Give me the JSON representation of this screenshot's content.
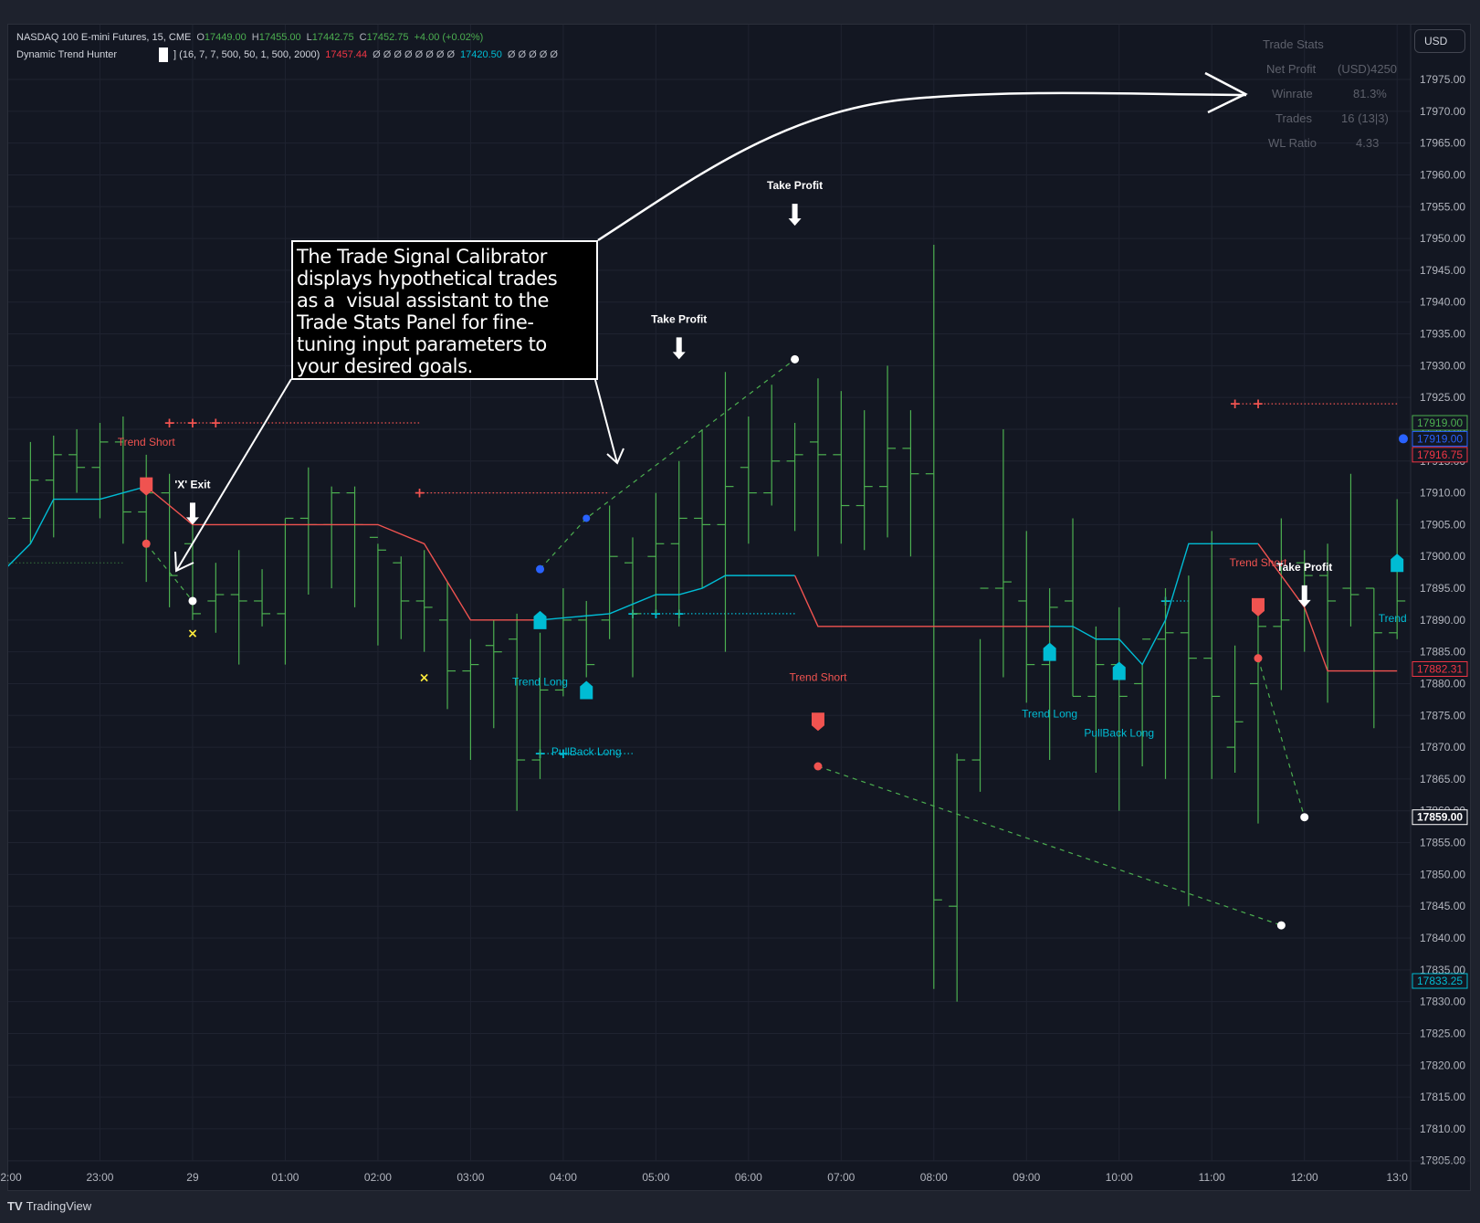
{
  "legend": {
    "symbol": "NASDAQ 100 E-mini Futures, 15, CME",
    "open_label": "O",
    "open": "17449.00",
    "high_label": "H",
    "high": "17455.00",
    "low_label": "L",
    "low": "17442.75",
    "close_label": "C",
    "close": "17452.75",
    "change": "+4.00 (+0.02%)",
    "indicator_name": "Dynamic Trend Hunter",
    "indicator_params": "] (16, 7, 7, 500, 50, 1, 500, 2000)",
    "indicator_value_1": "17457.44",
    "empty_values_1": "Ø Ø Ø Ø Ø Ø Ø Ø",
    "indicator_value_2": "17420.50",
    "empty_values_2": "Ø Ø Ø Ø Ø"
  },
  "currency_button": "USD",
  "trade_stats": {
    "title": "Trade Stats",
    "rows": [
      {
        "label": "Net Profit",
        "value": "(USD)4250"
      },
      {
        "label": "Winrate",
        "value": "81.3%"
      },
      {
        "label": "Trades",
        "value": "16 (13|3)"
      },
      {
        "label": "WL Ratio",
        "value": "4.33"
      }
    ]
  },
  "callout": {
    "lines": [
      "The Trade Signal Calibrator",
      "displays hypothetical trades",
      "as a  visual assistant to the",
      "Trade Stats Panel for fine-",
      "tuning input parameters to",
      "your desired goals."
    ]
  },
  "footer": {
    "logo_mark": "TV",
    "logo_text": "TradingView"
  },
  "colors": {
    "background": "#131722",
    "grid": "#1f2330",
    "bar": "#4caf50",
    "short": "#f05350",
    "long": "#00bcd4",
    "entry_long_dot": "#2962ff",
    "exit_dot": "#ffffff",
    "stop_x": "#ffeb3b",
    "axis_text": "#b2b5be"
  },
  "chart_data": {
    "type": "ohlc",
    "title": "NASDAQ 100 E-mini Futures, 15, CME",
    "ylim": [
      17802,
      17985
    ],
    "y_ticks": [
      17975,
      17970,
      17965,
      17960,
      17955,
      17950,
      17945,
      17940,
      17935,
      17930,
      17925,
      17920,
      17915,
      17910,
      17905,
      17900,
      17895,
      17890,
      17885,
      17880,
      17875,
      17870,
      17865,
      17860,
      17855,
      17850,
      17845,
      17840,
      17835,
      17830,
      17825,
      17820,
      17815,
      17810,
      17805
    ],
    "x_ticks": [
      {
        "label": "2:00",
        "t": 0
      },
      {
        "label": "23:00",
        "t": 4
      },
      {
        "label": "29",
        "t": 8
      },
      {
        "label": "01:00",
        "t": 12
      },
      {
        "label": "02:00",
        "t": 16
      },
      {
        "label": "03:00",
        "t": 20
      },
      {
        "label": "04:00",
        "t": 24
      },
      {
        "label": "05:00",
        "t": 28
      },
      {
        "label": "06:00",
        "t": 32
      },
      {
        "label": "07:00",
        "t": 36
      },
      {
        "label": "08:00",
        "t": 40
      },
      {
        "label": "09:00",
        "t": 44
      },
      {
        "label": "10:00",
        "t": 48
      },
      {
        "label": "11:00",
        "t": 52
      },
      {
        "label": "12:00",
        "t": 56
      },
      {
        "label": "13:0",
        "t": 60
      }
    ],
    "bars": [
      [
        17908,
        17912,
        17900,
        17906
      ],
      [
        17906,
        17918,
        17902,
        17912
      ],
      [
        17912,
        17919,
        17903,
        17916
      ],
      [
        17916,
        17920,
        17910,
        17914
      ],
      [
        17914,
        17921,
        17906,
        17918
      ],
      [
        17918,
        17922,
        17902,
        17907
      ],
      [
        17907,
        17916,
        17896,
        17910
      ],
      [
        17910,
        17913,
        17892,
        17897
      ],
      [
        17902,
        17906,
        17890,
        17891
      ],
      [
        17893,
        17899,
        17888,
        17894
      ],
      [
        17894,
        17901,
        17883,
        17893
      ],
      [
        17893,
        17898,
        17889,
        17891
      ],
      [
        17891,
        17906,
        17883,
        17906
      ],
      [
        17906,
        17914,
        17894,
        17905
      ],
      [
        17905,
        17911,
        17895,
        17910
      ],
      [
        17910,
        17911,
        17892,
        17905
      ],
      [
        17903,
        17902,
        17886,
        17901
      ],
      [
        17899,
        17900,
        17887,
        17893
      ],
      [
        17893,
        17901,
        17885,
        17892
      ],
      [
        17890,
        17896,
        17876,
        17882
      ],
      [
        17882,
        17887,
        17868,
        17883
      ],
      [
        17886,
        17890,
        17873,
        17885
      ],
      [
        17887,
        17891,
        17860,
        17868
      ],
      [
        17868,
        17888,
        17865,
        17879
      ],
      [
        17879,
        17895,
        17878,
        17890
      ],
      [
        17890,
        17893,
        17881,
        17883
      ],
      [
        17890,
        17908,
        17887,
        17900
      ],
      [
        17899,
        17903,
        17881,
        17891
      ],
      [
        17900,
        17910,
        17891,
        17902
      ],
      [
        17902,
        17915,
        17889,
        17906
      ],
      [
        17906,
        17920,
        17895,
        17905
      ],
      [
        17905,
        17929,
        17885,
        17911
      ],
      [
        17914,
        17922,
        17902,
        17910
      ],
      [
        17910,
        17927,
        17908,
        17915
      ],
      [
        17915,
        17921,
        17904,
        17916
      ],
      [
        17918,
        17928,
        17900,
        17916
      ],
      [
        17916,
        17926,
        17902,
        17908
      ],
      [
        17908,
        17923,
        17901,
        17911
      ],
      [
        17911,
        17930,
        17903,
        17917
      ],
      [
        17917,
        17923,
        17900,
        17913
      ],
      [
        17913,
        17949,
        17832,
        17846
      ],
      [
        17845,
        17869,
        17830,
        17868
      ],
      [
        17868,
        17887,
        17863,
        17895
      ],
      [
        17895,
        17920,
        17881,
        17896
      ],
      [
        17893,
        17904,
        17877,
        17883
      ],
      [
        17883,
        17895,
        17868,
        17892
      ],
      [
        17893,
        17906,
        17878,
        17878
      ],
      [
        17878,
        17889,
        17866,
        17883
      ],
      [
        17883,
        17892,
        17860,
        17878
      ],
      [
        17880,
        17883,
        17867,
        17887
      ],
      [
        17887,
        17895,
        17865,
        17888
      ],
      [
        17888,
        17897,
        17845,
        17884
      ],
      [
        17884,
        17904,
        17865,
        17878
      ],
      [
        17870,
        17886,
        17866,
        17874
      ],
      [
        17880,
        17893,
        17858,
        17889
      ],
      [
        17889,
        17906,
        17879,
        17890
      ],
      [
        17899,
        17901,
        17885,
        17897
      ],
      [
        17897,
        17902,
        17877,
        17893
      ],
      [
        17895,
        17913,
        17889,
        17894
      ],
      [
        17895,
        17895,
        17873,
        17888
      ],
      [
        17888,
        17909,
        17887,
        17893
      ]
    ],
    "trend_line_segments": [
      {
        "color": "short",
        "points": [
          [
            6,
            17911
          ],
          [
            8,
            17905
          ],
          [
            9,
            17905
          ],
          [
            16,
            17905
          ],
          [
            18,
            17902
          ],
          [
            20,
            17890
          ],
          [
            23,
            17890
          ]
        ]
      },
      {
        "color": "long",
        "points": [
          [
            -0.1,
            17898
          ],
          [
            1,
            17902
          ],
          [
            2,
            17909
          ],
          [
            3,
            17909
          ],
          [
            4,
            17909
          ],
          [
            6,
            17911
          ]
        ]
      },
      {
        "color": "long",
        "points": [
          [
            23,
            17890
          ],
          [
            26,
            17891
          ],
          [
            28,
            17894
          ],
          [
            29,
            17894
          ],
          [
            30,
            17895
          ],
          [
            31,
            17897
          ],
          [
            33,
            17897
          ],
          [
            34,
            17897
          ]
        ]
      },
      {
        "color": "short",
        "points": [
          [
            34,
            17897
          ],
          [
            35,
            17889
          ],
          [
            44,
            17889
          ],
          [
            45,
            17889
          ]
        ]
      },
      {
        "color": "long",
        "points": [
          [
            45,
            17889
          ],
          [
            46,
            17889
          ],
          [
            47,
            17887
          ],
          [
            48,
            17887
          ],
          [
            49,
            17883
          ],
          [
            50,
            17890
          ],
          [
            51,
            17902
          ],
          [
            54,
            17902
          ]
        ]
      },
      {
        "color": "short",
        "points": [
          [
            54,
            17902
          ],
          [
            56,
            17892
          ],
          [
            57,
            17882
          ],
          [
            60,
            17882
          ]
        ]
      }
    ],
    "signals": [
      {
        "label": "Trend Short",
        "type": "short",
        "t": 6,
        "price": 17911,
        "label_price": 17916
      },
      {
        "label": "Trend Long",
        "type": "long",
        "t": 23,
        "price": 17890,
        "label_price": 17884
      },
      {
        "label": "PullBack Long",
        "type": "long",
        "t": 25,
        "price": 17879,
        "label_price": 17873
      },
      {
        "label": "Trend Short",
        "type": "short",
        "t": 35,
        "price": 17874,
        "label_price": 17879
      },
      {
        "label": "Trend Long",
        "type": "long",
        "t": 45,
        "price": 17885,
        "label_price": 17879
      },
      {
        "label": "PullBack Long",
        "type": "long",
        "t": 48,
        "price": 17882,
        "label_price": 17876
      },
      {
        "label": "Trend Short",
        "type": "short",
        "t": 54,
        "price": 17892,
        "label_price": 17897
      },
      {
        "label": "Trend L",
        "type": "long",
        "t": 60,
        "price": 17899,
        "label_price": 17894
      }
    ],
    "exits": [
      {
        "label": "'X' Exit",
        "t": 8,
        "price": 17905,
        "label_price": 17909
      },
      {
        "label": "Take Profit",
        "t": 29,
        "price": 17931,
        "label_price": 17935
      },
      {
        "label": "Take Profit",
        "t": 34,
        "price": 17952,
        "label_price": 17957
      },
      {
        "label": "Take Profit",
        "t": 56,
        "price": 17892,
        "label_price": 17896
      }
    ],
    "trades": [
      {
        "entry": [
          6,
          17902
        ],
        "exit": [
          8,
          17893
        ],
        "entry_color": "short"
      },
      {
        "entry": [
          23,
          17898
        ],
        "exit": [
          34,
          17931
        ],
        "entry_color": "entry_long_dot",
        "mid": [
          25,
          17906
        ]
      },
      {
        "entry": [
          35,
          17867
        ],
        "exit": [
          55,
          17842
        ],
        "entry_color": "short"
      },
      {
        "entry": [
          54,
          17884
        ],
        "exit": [
          56,
          17859
        ],
        "entry_color": "short"
      }
    ],
    "stop_markers": [
      [
        8,
        17888
      ],
      [
        18,
        17881
      ]
    ],
    "target_lines": [
      {
        "color": "short",
        "price": 17921,
        "t0": 7,
        "t1": 17.8,
        "crosses": [
          7,
          8,
          9
        ]
      },
      {
        "color": "short",
        "price": 17910,
        "t0": 17.8,
        "t1": 26,
        "crosses": [
          17.8
        ]
      },
      {
        "color": "long",
        "price": 17891,
        "t0": 27,
        "t1": 34,
        "crosses": [
          27,
          28,
          29
        ]
      },
      {
        "color": "long",
        "price": 17869,
        "t0": 23,
        "t1": 27,
        "crosses": [
          23,
          24
        ]
      },
      {
        "color": "short",
        "price": 17924,
        "t0": 53,
        "t1": 60,
        "crosses": [
          53,
          54
        ]
      },
      {
        "color": "long",
        "price": 17893,
        "t0": 50,
        "t1": 51,
        "crosses": [
          50
        ]
      }
    ],
    "price_labels": [
      {
        "value": "17919.00",
        "price": 17921,
        "color": "#4caf50"
      },
      {
        "value": "17919.00",
        "price": 17918.5,
        "color": "#2962ff"
      },
      {
        "value": "17916.75",
        "price": 17916,
        "color": "#f23645"
      },
      {
        "value": "17882.31",
        "price": 17882.3,
        "color": "#f23645"
      },
      {
        "value": "17859.00",
        "price": 17859,
        "color": "#ffffff"
      },
      {
        "value": "17833.25",
        "price": 17833.25,
        "color": "#00bcd4"
      }
    ]
  }
}
